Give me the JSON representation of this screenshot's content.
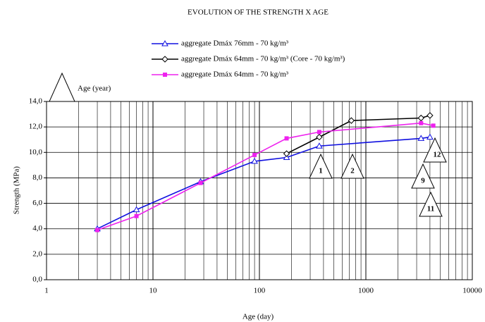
{
  "chart_data": {
    "type": "line",
    "title": "EVOLUTION OF THE STRENGTH X AGE",
    "xlabel": "Age (day)",
    "ylabel": "Strength  (MPa)",
    "xscale": "log",
    "xlim": [
      1,
      10000
    ],
    "xticks": [
      1,
      10,
      100,
      1000,
      10000
    ],
    "ylim": [
      0,
      14
    ],
    "yticks": [
      {
        "value": 0,
        "label": "0,0"
      },
      {
        "value": 2,
        "label": "2,0"
      },
      {
        "value": 4,
        "label": "4,0"
      },
      {
        "value": 6,
        "label": "6,0"
      },
      {
        "value": 8,
        "label": "8,0"
      },
      {
        "value": 10,
        "label": "10,0"
      },
      {
        "value": 12,
        "label": "12,0"
      },
      {
        "value": 14,
        "label": "14,0"
      }
    ],
    "grid": true,
    "legend": "top",
    "series": [
      {
        "name": "aggregate Dmáx 76mm - 70 kg/m³",
        "color": "#1010e0",
        "marker": "triangle",
        "x": [
          3,
          7,
          28,
          90,
          180,
          365,
          3300,
          4000
        ],
        "values": [
          4.0,
          5.5,
          7.7,
          9.3,
          9.6,
          10.5,
          11.1,
          11.2
        ]
      },
      {
        "name": "aggregate Dmáx 64mm - 70 kg/m³ (Core - 70 kg/m³)",
        "color": "#000000",
        "marker": "diamond",
        "x": [
          180,
          365,
          730,
          3300,
          4000
        ],
        "values": [
          9.9,
          11.2,
          12.5,
          12.7,
          12.9
        ]
      },
      {
        "name": "aggregate Dmáx 64mm - 70 kg/m³",
        "color": "#ee22ee",
        "marker": "square",
        "x": [
          3,
          7,
          28,
          90,
          180,
          365,
          3300,
          4300
        ],
        "values": [
          3.9,
          5.0,
          7.6,
          9.8,
          11.1,
          11.6,
          12.3,
          12.1
        ]
      }
    ],
    "annotations": [
      "Age (year)",
      "1",
      "2",
      "12",
      "9",
      "11"
    ]
  }
}
